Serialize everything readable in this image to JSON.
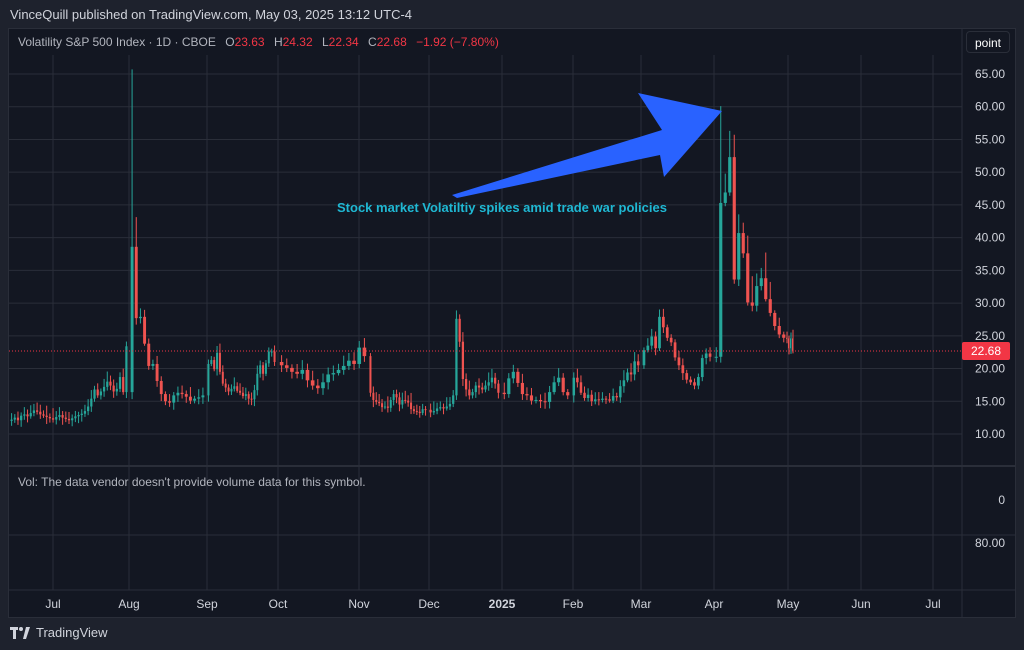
{
  "header": {
    "publisher_line": "VinceQuill published on TradingView.com, May 03, 2025 13:12 UTC-4"
  },
  "legend": {
    "symbol": "Volatility S&P 500 Index · 1D · CBOE",
    "open_label": "O",
    "open": "23.63",
    "high_label": "H",
    "high": "24.32",
    "low_label": "L",
    "low": "22.34",
    "close_label": "C",
    "close": "22.68",
    "change": "−1.92 (−7.80%)"
  },
  "toolbar": {
    "point_button": "point"
  },
  "annotation": {
    "text": "Stock market Volatiltiy spikes amid trade war policies"
  },
  "volume_pane": {
    "message": "Vol: The data vendor doesn't provide volume data for this symbol.",
    "axis_labels": [
      "0",
      "80.00"
    ]
  },
  "price_label": "22.68",
  "footer": {
    "brand": "TradingView",
    "logo_icon": "tradingview-logo-icon"
  },
  "colors": {
    "up": "#26a69a",
    "down": "#ef5350",
    "background": "#131722",
    "grid": "#2a2e39",
    "annotation_arrow": "#2962ff",
    "annotation_text": "#1fb8d3",
    "price_line": "#f23645"
  },
  "chart_data": {
    "type": "candlestick",
    "title": "Volatility S&P 500 Index · 1D · CBOE",
    "y_ticks": [
      10,
      15,
      20,
      25,
      30,
      35,
      40,
      45,
      50,
      55,
      60,
      65
    ],
    "ylim": [
      6,
      68
    ],
    "x_tick_labels": [
      "Jul",
      "Aug",
      "Sep",
      "Oct",
      "Nov",
      "Dec",
      "2025",
      "Feb",
      "Mar",
      "Apr",
      "May",
      "Jun",
      "Jul"
    ],
    "last_price": 22.68,
    "series": [
      {
        "segment": "2024-06 to 2024-07",
        "close": [
          12.2,
          12.5,
          12.1,
          12.8,
          13.0,
          12.7,
          13.2,
          13.6,
          13.4,
          13.0,
          12.8,
          12.6,
          12.4,
          12.2,
          12.6,
          12.9,
          12.5,
          12.3,
          12.1,
          12.4,
          12.7,
          12.9,
          13.1,
          13.5,
          14.2,
          15.4,
          16.8,
          15.9,
          16.5,
          17.2,
          18.0,
          17.4,
          16.5,
          16.9,
          18.7,
          16.4,
          23.4
        ]
      },
      {
        "segment": "2024-08",
        "close": [
          38.6,
          27.7,
          27.9,
          23.8,
          20.4,
          20.7,
          18.1,
          16.1,
          15.0,
          14.8,
          15.9,
          16.3,
          16.1,
          15.7,
          15.1,
          15.4,
          15.6,
          15.9
        ]
      },
      {
        "segment": "2024-09",
        "close": [
          20.7,
          21.3,
          19.9,
          22.4,
          19.5,
          17.7,
          17.1,
          16.5,
          16.9,
          17.3,
          16.6,
          16.3,
          15.8,
          16.1,
          15.4,
          15.3,
          16.7,
          19.2,
          20.5,
          19.2,
          20.8,
          22.6,
          22.6,
          21.0
        ]
      },
      {
        "segment": "2024-10",
        "close": [
          20.5,
          20.1,
          19.5,
          19.2,
          19.8,
          18.2,
          17.4,
          17.0,
          17.9,
          19.1,
          19.3,
          19.8,
          20.4,
          21.2,
          20.7,
          23.2,
          21.9
        ]
      },
      {
        "segment": "2024-11",
        "close": [
          16.3,
          15.2,
          14.9,
          14.7,
          14.1,
          14.2,
          14.0,
          15.2,
          16.1,
          15.6,
          14.5,
          15.2,
          15.1,
          14.8,
          13.8,
          13.5,
          13.4,
          13.2,
          13.8,
          13.7
        ]
      },
      {
        "segment": "2024-12",
        "close": [
          13.3,
          13.5,
          13.9,
          14.1,
          13.9,
          14.2,
          14.6,
          15.9,
          27.6,
          24.1,
          18.4,
          16.8,
          15.9,
          16.4,
          17.4,
          17.1,
          16.8,
          17.4,
          17.9,
          18.6,
          17.7,
          16.3
        ]
      },
      {
        "segment": "2025-01",
        "close": [
          16.1,
          18.5,
          19.5,
          17.8,
          16.1,
          15.9,
          15.1,
          15.2,
          15.0,
          14.9,
          16.4,
          17.9,
          18.6,
          16.4,
          15.9
        ]
      },
      {
        "segment": "2025-02",
        "close": [
          18.6,
          17.9,
          16.3,
          15.5,
          16.0,
          15.0,
          15.3,
          15.2,
          15.4,
          15.3,
          15.1,
          15.8,
          15.6,
          17.3,
          18.2,
          19.4,
          19.1,
          21.1,
          20.5
        ]
      },
      {
        "segment": "2025-03",
        "close": [
          22.8,
          23.5,
          24.9,
          23.1,
          27.9,
          26.3,
          24.7,
          24.0,
          21.7,
          20.5,
          19.3,
          18.3,
          17.9,
          17.4,
          18.7,
          21.6,
          22.3,
          21.8
        ]
      },
      {
        "segment": "2025-04",
        "close": [
          21.8,
          45.3,
          46.9,
          52.3,
          33.6,
          40.7,
          37.6,
          30.1,
          29.6,
          32.6,
          33.8,
          30.6,
          28.5,
          26.5,
          25.2,
          24.7
        ]
      },
      {
        "segment": "2025-05",
        "close": [
          24.6,
          23.1,
          24.6,
          22.68
        ]
      }
    ]
  }
}
